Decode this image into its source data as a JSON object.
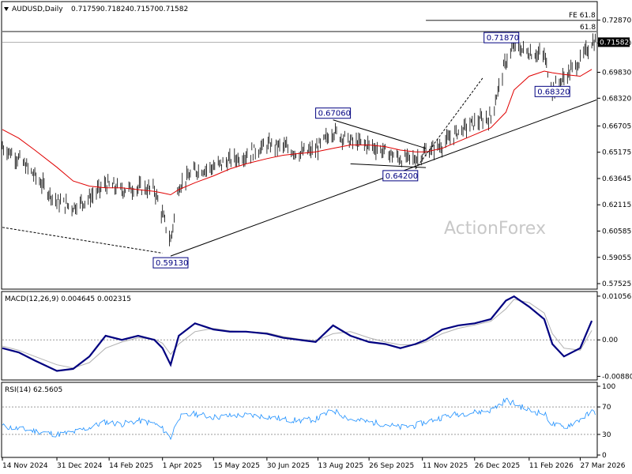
{
  "chart_data": {
    "type": "line",
    "symbol": "AUDUSD",
    "timeframe": "Daily",
    "header": {
      "title": "AUDUSD,Daily",
      "ohlc": [
        "0.71759",
        "0.71824",
        "0.71570",
        "0.71582"
      ]
    },
    "watermark": "ActionForex",
    "price_panel": {
      "ylim": [
        0.5725,
        0.739
      ],
      "yticks": [
        "0.72870",
        "0.71540",
        "0.69830",
        "0.68320",
        "0.66705",
        "0.65175",
        "0.63645",
        "0.62115",
        "0.60585",
        "0.59055",
        "0.57525"
      ],
      "ytick_values": [
        0.7287,
        0.7154,
        0.6983,
        0.6832,
        0.66705,
        0.65175,
        0.63645,
        0.62115,
        0.60585,
        0.59055,
        0.57525
      ],
      "current_price": "0.71582",
      "current_value": 0.71582,
      "fib_level": {
        "label": "61.8",
        "value": 0.722
      },
      "fe_level": {
        "label": "FE 61.8",
        "value": 0.7285
      },
      "labels": [
        {
          "text": "0.67060",
          "x": "2025-08-26",
          "y": 0.6706
        },
        {
          "text": "0.64200",
          "x": "2025-10-23",
          "y": 0.642
        },
        {
          "text": "0.59130",
          "x": "2025-04-08",
          "y": 0.5913
        },
        {
          "text": "0.71870",
          "x": "2026-01-29",
          "y": 0.7187
        },
        {
          "text": "0.68320",
          "x": "2026-03-03",
          "y": 0.6832
        }
      ],
      "trendlines": [
        {
          "from": {
            "x": "2025-04-08",
            "y": 0.5913
          },
          "to": {
            "x": "2026-04-10",
            "y": 0.6822
          }
        },
        {
          "from": {
            "x": "2025-08-26",
            "y": 0.6706
          },
          "to": {
            "x": "2025-11-14",
            "y": 0.654
          }
        },
        {
          "from": {
            "x": "2025-09-10",
            "y": 0.645
          },
          "to": {
            "x": "2025-11-14",
            "y": 0.6428
          }
        },
        {
          "from": {
            "x": "2024-11-14",
            "y": 0.608
          },
          "to": {
            "x": "2025-04-01",
            "y": 0.593
          },
          "style": "dashed"
        },
        {
          "from": {
            "x": "2025-11-05",
            "y": 0.642
          },
          "to": {
            "x": "2026-01-02",
            "y": 0.695
          },
          "style": "dashed"
        }
      ],
      "price_series": {
        "x": [
          "2024-11-14",
          "2024-11-28",
          "2024-12-12",
          "2024-12-31",
          "2025-01-14",
          "2025-01-28",
          "2025-02-11",
          "2025-02-25",
          "2025-03-11",
          "2025-03-25",
          "2025-04-01",
          "2025-04-08",
          "2025-04-15",
          "2025-04-29",
          "2025-05-15",
          "2025-05-29",
          "2025-06-12",
          "2025-06-30",
          "2025-07-14",
          "2025-07-28",
          "2025-08-11",
          "2025-08-26",
          "2025-09-10",
          "2025-09-26",
          "2025-10-10",
          "2025-10-23",
          "2025-11-05",
          "2025-11-14",
          "2025-11-28",
          "2025-12-12",
          "2025-12-26",
          "2026-01-09",
          "2026-01-22",
          "2026-01-29",
          "2026-02-11",
          "2026-02-24",
          "2026-03-03",
          "2026-03-13",
          "2026-03-27",
          "2026-04-06"
        ],
        "close": [
          0.655,
          0.648,
          0.638,
          0.623,
          0.62,
          0.625,
          0.633,
          0.63,
          0.631,
          0.63,
          0.615,
          0.6,
          0.632,
          0.641,
          0.643,
          0.647,
          0.65,
          0.656,
          0.655,
          0.651,
          0.653,
          0.664,
          0.658,
          0.656,
          0.652,
          0.648,
          0.648,
          0.652,
          0.656,
          0.664,
          0.669,
          0.672,
          0.705,
          0.713,
          0.71,
          0.708,
          0.688,
          0.695,
          0.705,
          0.7158
        ]
      },
      "ma_series": {
        "close": [
          0.665,
          0.66,
          0.653,
          0.643,
          0.635,
          0.632,
          0.631,
          0.631,
          0.63,
          0.629,
          0.628,
          0.627,
          0.63,
          0.634,
          0.638,
          0.642,
          0.645,
          0.648,
          0.65,
          0.651,
          0.652,
          0.654,
          0.656,
          0.656,
          0.655,
          0.653,
          0.652,
          0.652,
          0.654,
          0.658,
          0.662,
          0.666,
          0.675,
          0.688,
          0.696,
          0.699,
          0.698,
          0.697,
          0.696,
          0.7
        ]
      }
    },
    "macd_panel": {
      "title": "MACD(12,26,9) 0.004645 0.002315",
      "ylim": [
        -0.0095,
        0.0115
      ],
      "yticks": [
        "0.010567",
        "0.00",
        "-0.008808"
      ],
      "ytick_values": [
        0.010567,
        0.0,
        -0.008808
      ],
      "macd": [
        -0.002,
        -0.003,
        -0.005,
        -0.0075,
        -0.007,
        -0.004,
        0.001,
        0.0,
        0.001,
        0.0,
        -0.002,
        -0.006,
        0.001,
        0.004,
        0.0025,
        0.002,
        0.002,
        0.0015,
        0.0005,
        0.0,
        -0.0005,
        0.0035,
        0.001,
        -0.0005,
        -0.001,
        -0.002,
        -0.001,
        0.0,
        0.0025,
        0.0035,
        0.004,
        0.005,
        0.0095,
        0.0105,
        0.008,
        0.005,
        -0.001,
        -0.004,
        -0.002,
        0.0046
      ],
      "signal": [
        -0.0015,
        -0.0025,
        -0.004,
        -0.006,
        -0.0068,
        -0.0055,
        -0.002,
        -0.0005,
        0.0005,
        0.0002,
        -0.0008,
        -0.0035,
        -0.001,
        0.002,
        0.0028,
        0.0022,
        0.002,
        0.0017,
        0.0008,
        0.0002,
        -0.0002,
        0.0015,
        0.002,
        0.0005,
        -0.0005,
        -0.0012,
        -0.0012,
        -0.0005,
        0.0015,
        0.0028,
        0.0036,
        0.0045,
        0.0075,
        0.0098,
        0.009,
        0.0065,
        0.0015,
        -0.002,
        -0.0025,
        0.0023
      ]
    },
    "rsi_panel": {
      "title": "RSI(14) 62.5605",
      "ylim": [
        0,
        100
      ],
      "yticks": [
        "100",
        "70",
        "30",
        "0"
      ],
      "ytick_values": [
        100,
        70,
        30,
        0
      ],
      "rsi": [
        42,
        38,
        35,
        30,
        33,
        40,
        48,
        45,
        50,
        46,
        38,
        25,
        55,
        60,
        55,
        57,
        58,
        56,
        52,
        50,
        52,
        65,
        52,
        48,
        45,
        40,
        43,
        48,
        55,
        60,
        62,
        65,
        80,
        75,
        65,
        60,
        45,
        40,
        52,
        62.5605
      ]
    },
    "xaxis": {
      "ticks": [
        "14 Nov 2024",
        "31 Dec 2024",
        "14 Feb 2025",
        "1 Apr 2025",
        "15 May 2025",
        "30 Jun 2025",
        "13 Aug 2025",
        "26 Sep 2025",
        "11 Nov 2025",
        "26 Dec 2025",
        "11 Feb 2026",
        "27 Mar 2026"
      ],
      "tick_dates": [
        "2024-11-14",
        "2024-12-31",
        "2025-02-14",
        "2025-04-01",
        "2025-05-15",
        "2025-06-30",
        "2025-08-13",
        "2025-09-26",
        "2025-11-11",
        "2025-12-26",
        "2026-02-11",
        "2026-03-27"
      ]
    },
    "colors": {
      "bars": "#000000",
      "ma": "#e00000",
      "macd": "#000080",
      "signal": "#b0b0b0",
      "rsi": "#1e90ff",
      "label_border": "#000080",
      "watermark": "#c8c8c8",
      "grid": "#9a9a9a",
      "current_price_bg": "#000000",
      "current_price_text": "#ffffff"
    }
  }
}
